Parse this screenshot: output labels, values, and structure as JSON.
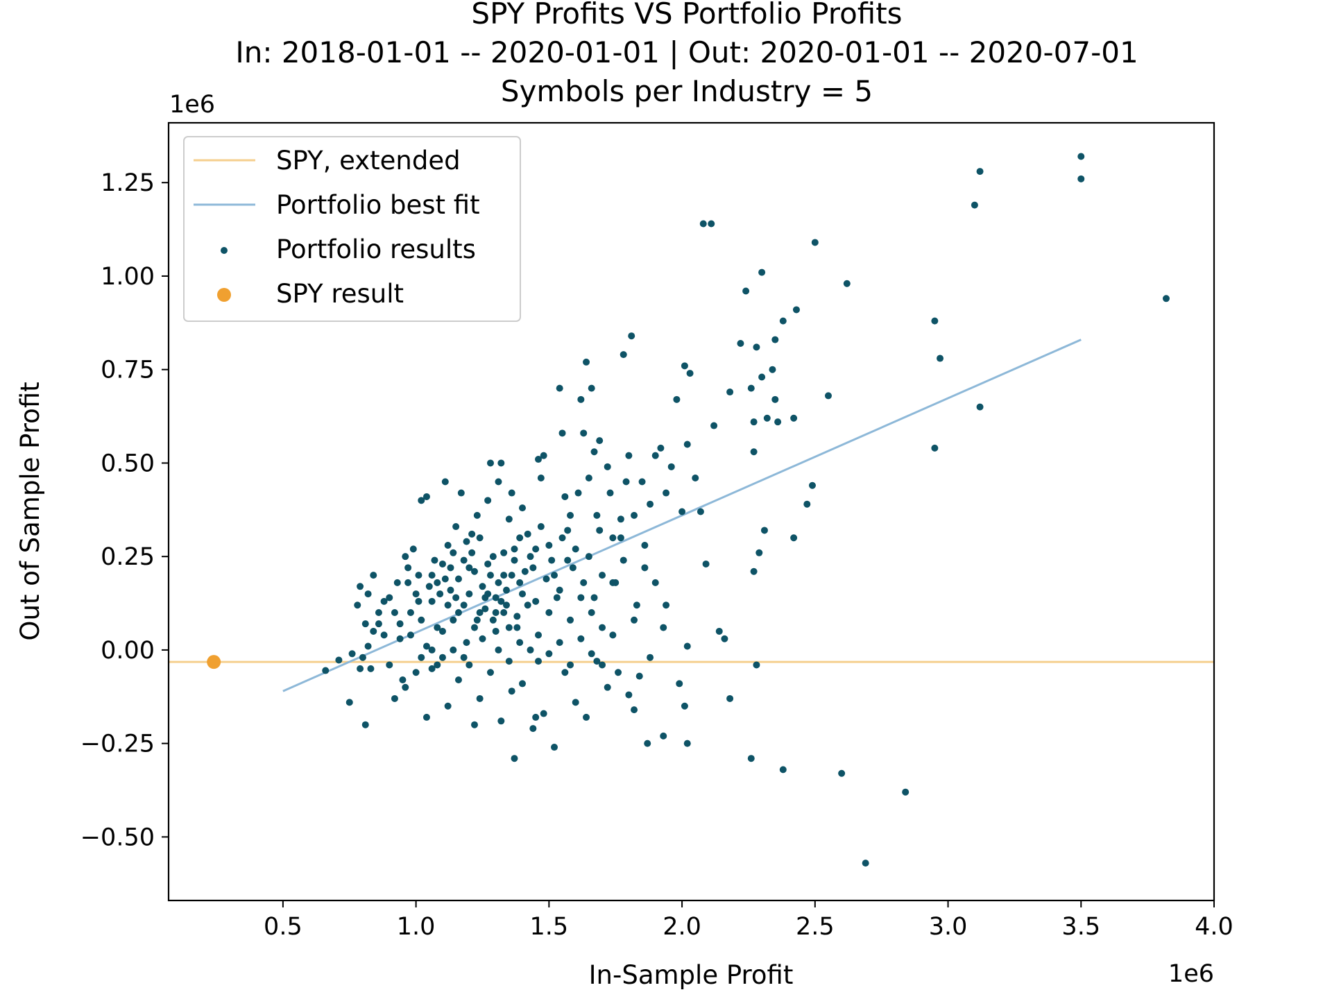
{
  "chart_data": {
    "type": "scatter",
    "title": "SPY Profits VS Portfolio Profits",
    "subtitle": "In: 2018-01-01 -- 2020-01-01 | Out: 2020-01-01 -- 2020-07-01",
    "subtitle2": "Symbols per Industry = 5",
    "xlabel": "In-Sample Profit",
    "ylabel": "Out of Sample Profit",
    "x_offset_label": "1e6",
    "y_offset_label": "1e6",
    "xlim": [
      0.07,
      4.0
    ],
    "ylim": [
      -0.67,
      1.41
    ],
    "x_ticks": [
      0.5,
      1.0,
      1.5,
      2.0,
      2.5,
      3.0,
      3.5,
      4.0
    ],
    "x_tick_labels": [
      "0.5",
      "1.0",
      "1.5",
      "2.0",
      "2.5",
      "3.0",
      "3.5",
      "4.0"
    ],
    "y_ticks": [
      -0.5,
      -0.25,
      0.0,
      0.25,
      0.5,
      0.75,
      1.0,
      1.25
    ],
    "y_tick_labels": [
      "−0.50",
      "−0.25",
      "0.00",
      "0.25",
      "0.50",
      "0.75",
      "1.00",
      "1.25"
    ],
    "grid": false,
    "legend_position": "top-left",
    "colors": {
      "spy_line": "#f5cf8e",
      "fit_line": "#8db8d8",
      "points": "#0e5366",
      "spy_point": "#f0a030"
    },
    "series": [
      {
        "name": "SPY, extended",
        "kind": "line",
        "x": [
          0.07,
          4.0
        ],
        "y": [
          -0.032,
          -0.032
        ]
      },
      {
        "name": "Portfolio best fit",
        "kind": "line",
        "x": [
          0.5,
          3.5
        ],
        "y": [
          -0.11,
          0.83
        ]
      },
      {
        "name": "Portfolio results",
        "kind": "scatter",
        "points": [
          [
            0.66,
            -0.055
          ],
          [
            0.71,
            -0.027
          ],
          [
            0.75,
            -0.14
          ],
          [
            0.8,
            -0.02
          ],
          [
            0.82,
            0.01
          ],
          [
            0.84,
            0.05
          ],
          [
            0.83,
            -0.05
          ],
          [
            0.81,
            -0.2
          ],
          [
            0.78,
            0.12
          ],
          [
            0.79,
            0.17
          ],
          [
            0.84,
            0.2
          ],
          [
            0.82,
            0.15
          ],
          [
            0.86,
            0.07
          ],
          [
            0.88,
            0.13
          ],
          [
            0.9,
            -0.04
          ],
          [
            0.92,
            0.1
          ],
          [
            0.94,
            0.03
          ],
          [
            0.95,
            -0.08
          ],
          [
            0.96,
            0.25
          ],
          [
            0.97,
            0.18
          ],
          [
            0.99,
            0.27
          ],
          [
            1.01,
            0.2
          ],
          [
            1.02,
            0.4
          ],
          [
            1.04,
            0.41
          ],
          [
            1.06,
            0.13
          ],
          [
            1.08,
            0.06
          ],
          [
            1.1,
            0.23
          ],
          [
            1.11,
            0.45
          ],
          [
            1.12,
            0.28
          ],
          [
            1.13,
            0.16
          ],
          [
            1.15,
            0.33
          ],
          [
            1.16,
            0.1
          ],
          [
            1.18,
            0.24
          ],
          [
            1.19,
            0.02
          ],
          [
            1.2,
            0.15
          ],
          [
            1.21,
            0.31
          ],
          [
            1.22,
            0.21
          ],
          [
            1.23,
            0.08
          ],
          [
            1.24,
            0.3
          ],
          [
            1.25,
            0.17
          ],
          [
            1.26,
            0.11
          ],
          [
            1.27,
            0.4
          ],
          [
            1.28,
            0.5
          ],
          [
            1.29,
            0.25
          ],
          [
            1.3,
            0.14
          ],
          [
            1.31,
            0.45
          ],
          [
            1.32,
            0.5
          ],
          [
            1.33,
            0.2
          ],
          [
            1.34,
            0.12
          ],
          [
            1.35,
            0.35
          ],
          [
            1.36,
            0.42
          ],
          [
            1.37,
            0.27
          ],
          [
            1.38,
            0.09
          ],
          [
            1.39,
            0.18
          ],
          [
            1.4,
            0.38
          ],
          [
            1.42,
            0.31
          ],
          [
            1.44,
            0.22
          ],
          [
            1.45,
            0.13
          ],
          [
            1.46,
            0.51
          ],
          [
            1.47,
            0.46
          ],
          [
            1.48,
            0.52
          ],
          [
            1.5,
            0.28
          ],
          [
            1.52,
            0.2
          ],
          [
            1.54,
            0.7
          ],
          [
            1.55,
            0.58
          ],
          [
            1.56,
            0.41
          ],
          [
            1.57,
            0.24
          ],
          [
            1.58,
            0.36
          ],
          [
            1.6,
            0.27
          ],
          [
            1.62,
            0.67
          ],
          [
            1.63,
            0.58
          ],
          [
            1.64,
            0.77
          ],
          [
            1.65,
            0.46
          ],
          [
            1.66,
            0.7
          ],
          [
            1.67,
            0.53
          ],
          [
            1.68,
            0.36
          ],
          [
            1.69,
            0.56
          ],
          [
            1.7,
            0.2
          ],
          [
            1.72,
            0.49
          ],
          [
            1.74,
            0.3
          ],
          [
            1.75,
            0.18
          ],
          [
            1.77,
            0.35
          ],
          [
            1.78,
            0.79
          ],
          [
            1.79,
            0.45
          ],
          [
            1.8,
            0.52
          ],
          [
            1.81,
            0.84
          ],
          [
            1.82,
            0.36
          ],
          [
            1.83,
            0.12
          ],
          [
            1.85,
            0.45
          ],
          [
            1.86,
            0.28
          ],
          [
            1.88,
            0.39
          ],
          [
            1.9,
            0.52
          ],
          [
            1.92,
            0.54
          ],
          [
            1.94,
            0.42
          ],
          [
            1.96,
            0.49
          ],
          [
            1.98,
            0.67
          ],
          [
            2.0,
            0.37
          ],
          [
            2.01,
            0.76
          ],
          [
            2.02,
            0.55
          ],
          [
            2.03,
            0.74
          ],
          [
            2.05,
            0.46
          ],
          [
            2.07,
            0.37
          ],
          [
            2.09,
            0.23
          ],
          [
            2.12,
            0.6
          ],
          [
            2.16,
            0.03
          ],
          [
            2.18,
            0.69
          ],
          [
            2.22,
            0.82
          ],
          [
            2.24,
            0.96
          ],
          [
            2.26,
            0.7
          ],
          [
            2.27,
            0.61
          ],
          [
            2.28,
            0.81
          ],
          [
            2.3,
            0.73
          ],
          [
            2.32,
            0.62
          ],
          [
            2.34,
            0.75
          ],
          [
            2.35,
            0.67
          ],
          [
            2.36,
            0.61
          ],
          [
            2.38,
            0.88
          ],
          [
            2.42,
            0.62
          ],
          [
            2.43,
            0.91
          ],
          [
            2.5,
            1.09
          ],
          [
            2.55,
            0.68
          ],
          [
            2.62,
            0.98
          ],
          [
            2.3,
            1.01
          ],
          [
            2.08,
            1.14
          ],
          [
            2.11,
            1.14
          ],
          [
            2.35,
            0.83
          ],
          [
            2.95,
            0.88
          ],
          [
            2.97,
            0.78
          ],
          [
            2.95,
            0.54
          ],
          [
            3.1,
            1.19
          ],
          [
            3.12,
            1.28
          ],
          [
            3.12,
            0.65
          ],
          [
            3.5,
            1.32
          ],
          [
            3.5,
            1.26
          ],
          [
            3.82,
            0.94
          ],
          [
            2.27,
            0.53
          ],
          [
            2.27,
            0.21
          ],
          [
            2.29,
            0.26
          ],
          [
            2.31,
            0.32
          ],
          [
            2.42,
            0.3
          ],
          [
            2.47,
            0.39
          ],
          [
            2.49,
            0.44
          ],
          [
            2.14,
            0.05
          ],
          [
            2.02,
            0.01
          ],
          [
            1.93,
            0.06
          ],
          [
            1.88,
            -0.02
          ],
          [
            1.84,
            -0.07
          ],
          [
            1.8,
            -0.12
          ],
          [
            1.76,
            -0.06
          ],
          [
            1.72,
            -0.1
          ],
          [
            1.68,
            -0.03
          ],
          [
            1.64,
            -0.18
          ],
          [
            1.6,
            -0.14
          ],
          [
            1.56,
            -0.06
          ],
          [
            1.52,
            -0.26
          ],
          [
            1.48,
            -0.17
          ],
          [
            1.44,
            -0.21
          ],
          [
            1.4,
            -0.09
          ],
          [
            1.36,
            -0.11
          ],
          [
            1.32,
            -0.19
          ],
          [
            1.28,
            -0.06
          ],
          [
            1.24,
            -0.13
          ],
          [
            1.2,
            -0.04
          ],
          [
            1.16,
            -0.08
          ],
          [
            1.12,
            -0.15
          ],
          [
            1.08,
            -0.04
          ],
          [
            1.04,
            -0.18
          ],
          [
            1.0,
            -0.06
          ],
          [
            0.96,
            -0.1
          ],
          [
            0.92,
            -0.13
          ],
          [
            1.22,
            -0.2
          ],
          [
            1.37,
            -0.29
          ],
          [
            1.45,
            -0.18
          ],
          [
            1.82,
            -0.16
          ],
          [
            1.87,
            -0.25
          ],
          [
            1.99,
            -0.09
          ],
          [
            2.02,
            -0.25
          ],
          [
            2.18,
            -0.13
          ],
          [
            2.26,
            -0.29
          ],
          [
            2.38,
            -0.32
          ],
          [
            2.6,
            -0.33
          ],
          [
            2.84,
            -0.38
          ],
          [
            2.69,
            -0.57
          ],
          [
            2.28,
            -0.04
          ],
          [
            1.93,
            -0.23
          ],
          [
            2.01,
            -0.15
          ],
          [
            1.06,
            0.0
          ],
          [
            1.1,
            0.05
          ],
          [
            1.14,
            0.08
          ],
          [
            1.18,
            0.12
          ],
          [
            1.22,
            0.06
          ],
          [
            1.26,
            0.14
          ],
          [
            1.3,
            0.1
          ],
          [
            1.34,
            0.16
          ],
          [
            1.38,
            0.06
          ],
          [
            1.42,
            0.12
          ],
          [
            1.46,
            0.04
          ],
          [
            1.5,
            0.1
          ],
          [
            1.54,
            0.16
          ],
          [
            1.58,
            0.08
          ],
          [
            1.62,
            0.14
          ],
          [
            1.66,
            0.1
          ],
          [
            1.7,
            0.06
          ],
          [
            1.74,
            0.18
          ],
          [
            1.78,
            0.24
          ],
          [
            1.82,
            0.08
          ],
          [
            1.86,
            0.22
          ],
          [
            1.9,
            0.18
          ],
          [
            1.94,
            0.12
          ],
          [
            0.98,
            0.1
          ],
          [
            1.0,
            0.15
          ],
          [
            1.02,
            0.08
          ],
          [
            1.04,
            0.01
          ],
          [
            1.06,
            0.2
          ],
          [
            1.08,
            0.18
          ],
          [
            1.12,
            0.12
          ],
          [
            1.14,
            0.26
          ],
          [
            1.16,
            0.19
          ],
          [
            1.2,
            0.22
          ],
          [
            1.24,
            0.1
          ],
          [
            1.28,
            0.2
          ],
          [
            1.3,
            0.05
          ],
          [
            1.32,
            0.13
          ],
          [
            1.36,
            0.2
          ],
          [
            1.4,
            0.15
          ],
          [
            1.43,
            0.25
          ],
          [
            1.47,
            0.33
          ],
          [
            1.51,
            0.24
          ],
          [
            1.55,
            0.3
          ],
          [
            1.59,
            0.22
          ],
          [
            1.61,
            0.42
          ],
          [
            1.65,
            0.25
          ],
          [
            1.69,
            0.32
          ],
          [
            1.73,
            0.42
          ],
          [
            1.77,
            0.3
          ],
          [
            1.25,
            0.03
          ],
          [
            1.27,
            0.15
          ],
          [
            1.29,
            0.08
          ],
          [
            1.31,
            0.18
          ],
          [
            1.33,
            0.1
          ],
          [
            1.35,
            0.06
          ],
          [
            1.37,
            0.24
          ],
          [
            1.39,
            0.02
          ],
          [
            1.41,
            0.21
          ],
          [
            1.43,
            0.0
          ],
          [
            1.19,
            0.29
          ],
          [
            1.23,
            0.36
          ],
          [
            1.17,
            0.42
          ],
          [
            1.13,
            0.22
          ],
          [
            1.09,
            0.15
          ],
          [
            0.9,
            0.14
          ],
          [
            0.88,
            0.04
          ],
          [
            0.86,
            0.1
          ],
          [
            0.94,
            0.07
          ],
          [
            0.98,
            0.04
          ],
          [
            1.02,
            -0.02
          ],
          [
            1.06,
            -0.05
          ],
          [
            1.1,
            -0.02
          ],
          [
            1.14,
            0.0
          ],
          [
            1.18,
            -0.02
          ],
          [
            1.46,
            -0.03
          ],
          [
            1.5,
            -0.01
          ],
          [
            1.54,
            0.02
          ],
          [
            1.58,
            -0.04
          ],
          [
            1.62,
            0.03
          ],
          [
            1.66,
            -0.01
          ],
          [
            1.7,
            -0.04
          ],
          [
            1.74,
            0.04
          ],
          [
            1.35,
            -0.03
          ],
          [
            1.31,
            0.0
          ],
          [
            0.76,
            -0.01
          ],
          [
            0.79,
            -0.05
          ],
          [
            0.81,
            0.07
          ],
          [
            0.93,
            0.18
          ],
          [
            0.97,
            0.22
          ],
          [
            1.01,
            0.13
          ],
          [
            1.05,
            0.17
          ],
          [
            1.07,
            0.24
          ],
          [
            1.11,
            0.19
          ],
          [
            1.15,
            0.14
          ],
          [
            1.21,
            0.26
          ],
          [
            1.27,
            0.23
          ],
          [
            1.33,
            0.26
          ],
          [
            1.39,
            0.3
          ],
          [
            1.45,
            0.27
          ],
          [
            1.49,
            0.19
          ],
          [
            1.53,
            0.14
          ],
          [
            1.57,
            0.32
          ],
          [
            1.63,
            0.18
          ],
          [
            1.67,
            0.14
          ]
        ]
      },
      {
        "name": "SPY result",
        "kind": "point",
        "x": 0.24,
        "y": -0.032
      }
    ]
  }
}
